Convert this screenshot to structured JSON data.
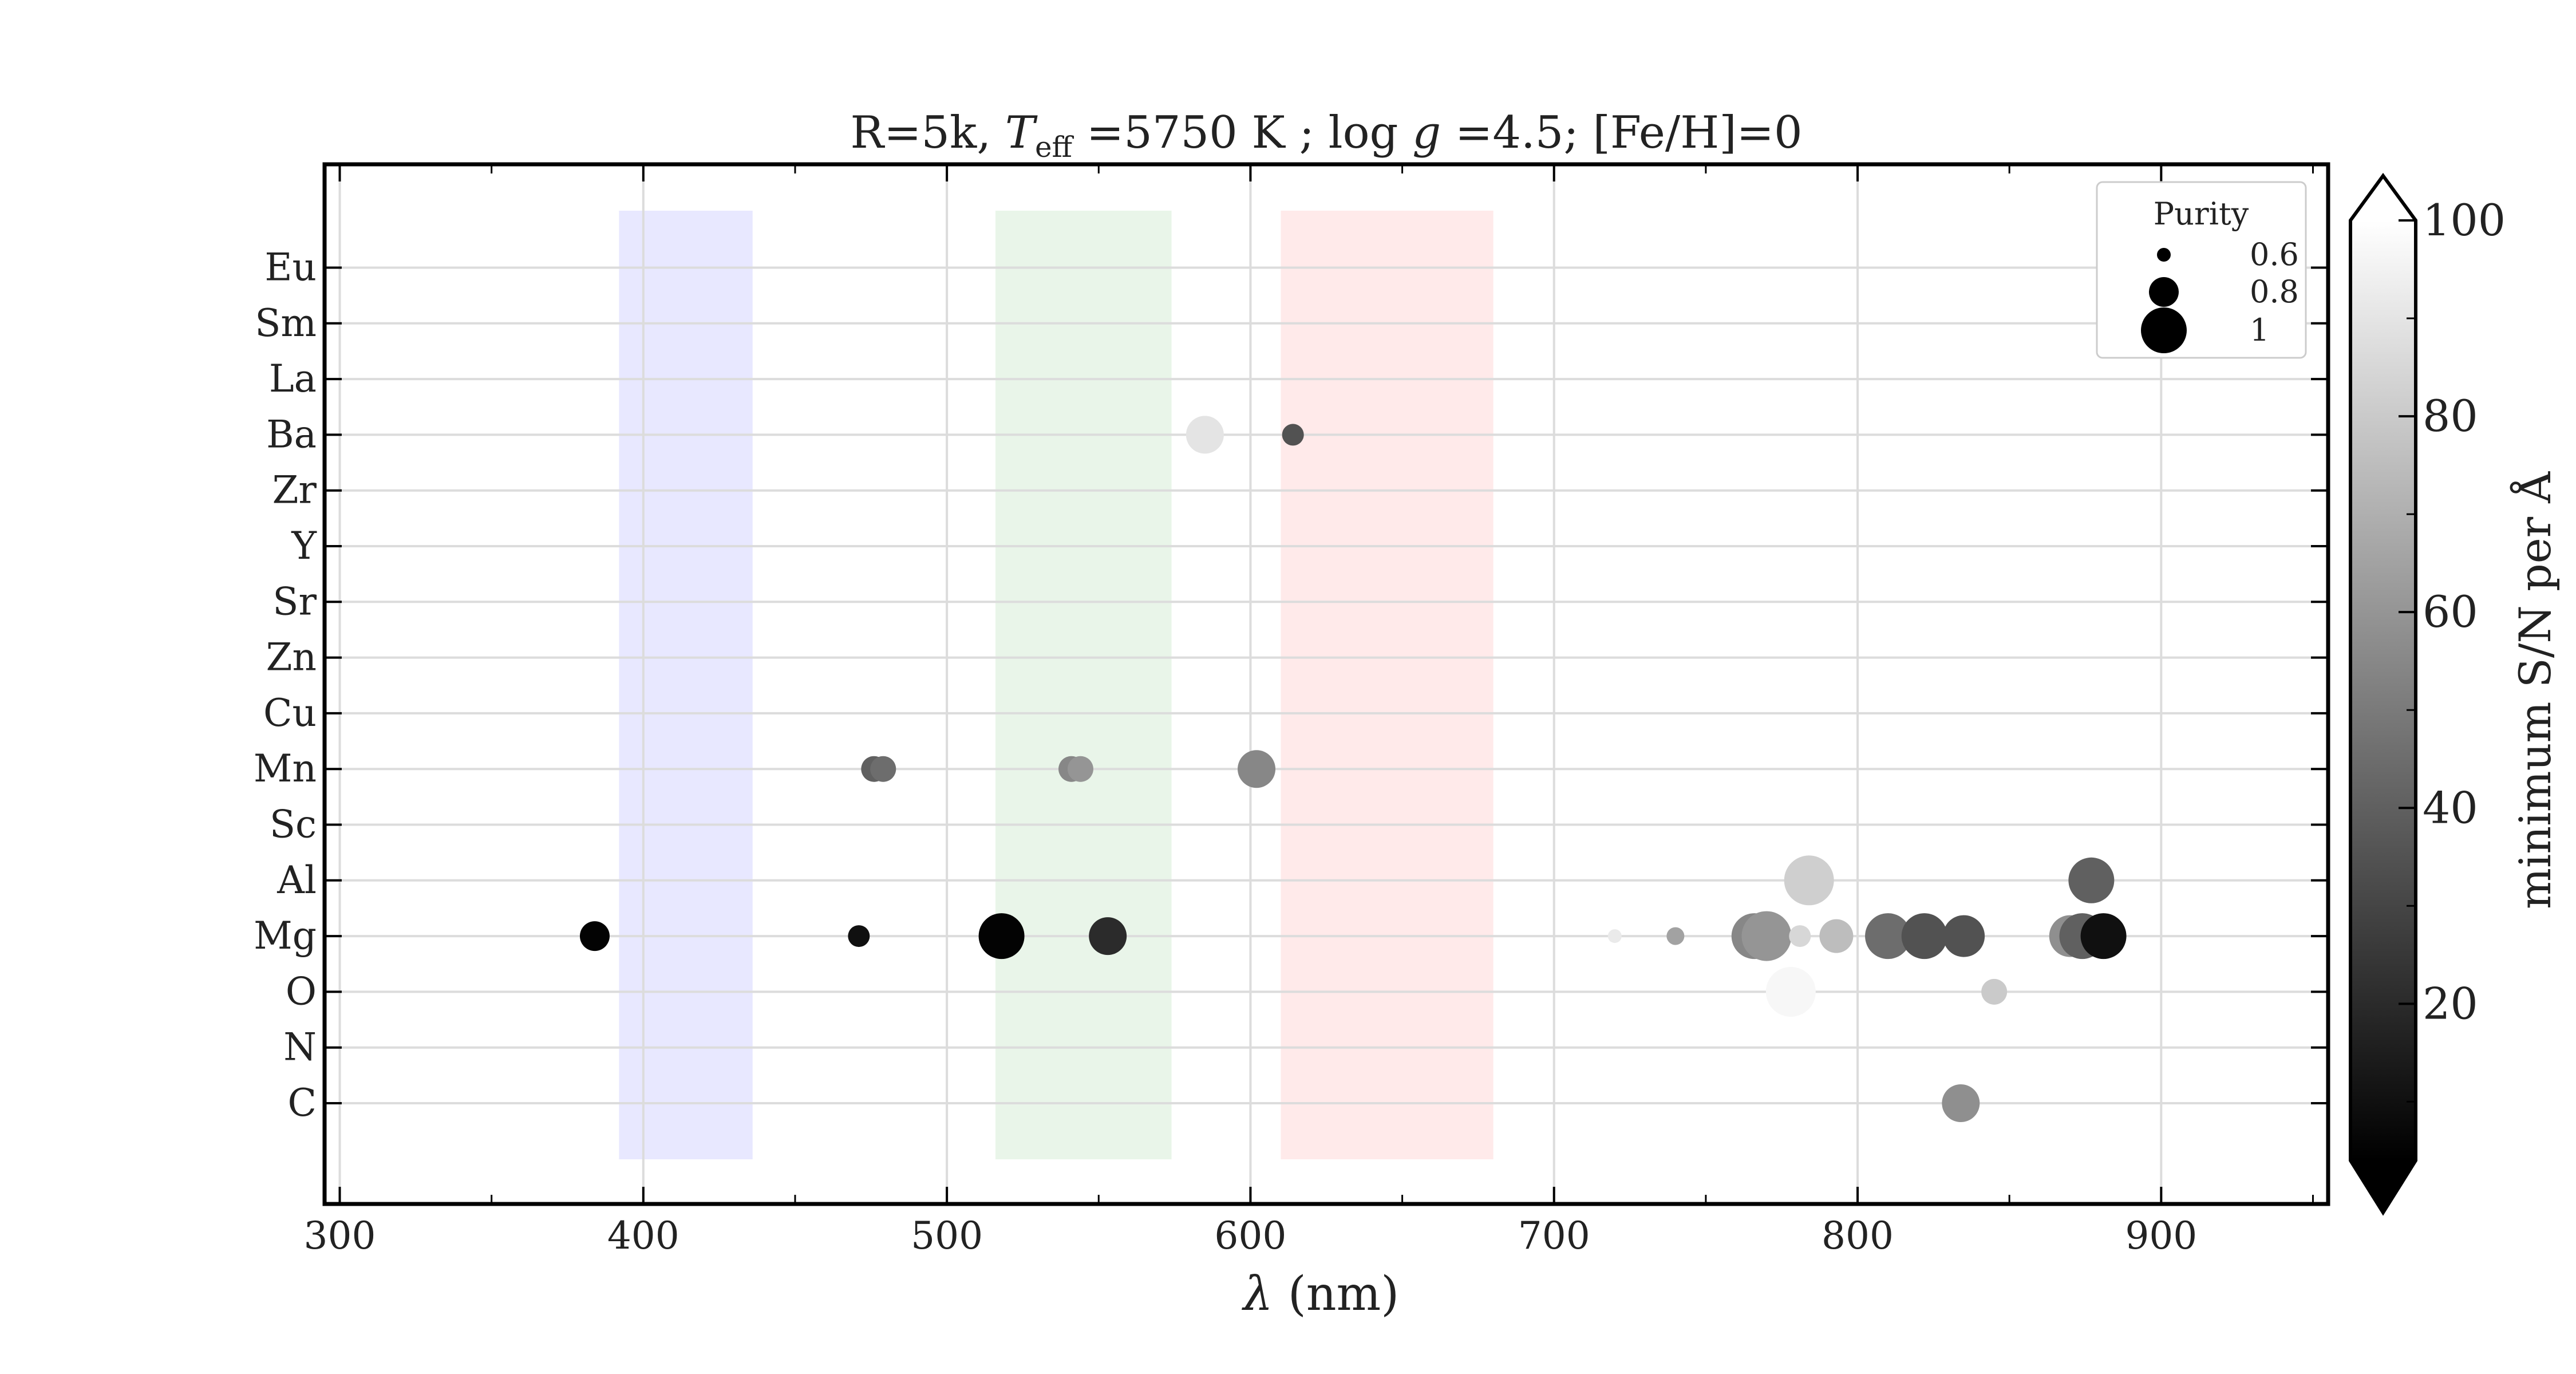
{
  "chart_data": {
    "type": "scatter",
    "title_parts": {
      "prefix": "R=5k, ",
      "teff_symbol": "T",
      "teff_sub": "eff",
      "teff_value": " =5750 K ; log ",
      "g_symbol": "g",
      "rest": " =4.5; [Fe/H]=0"
    },
    "title": "R=5k, T_eff =5750 K ; log g =4.5; [Fe/H]=0",
    "xlabel": "λ (nm)",
    "xlabel_parts": {
      "symbol": "λ",
      "unit": " (nm)"
    },
    "xlim": [
      295,
      955
    ],
    "x_ticks": [
      300,
      400,
      500,
      600,
      700,
      800,
      900
    ],
    "x_minor_step": 50,
    "y_categories": [
      "C",
      "N",
      "O",
      "Mg",
      "Al",
      "Sc",
      "Mn",
      "Cu",
      "Zn",
      "Sr",
      "Y",
      "Zr",
      "Ba",
      "La",
      "Sm",
      "Eu"
    ],
    "grid": true,
    "bands": [
      {
        "name": "blue",
        "x0": 392,
        "x1": 436,
        "color": "#e8e8ff"
      },
      {
        "name": "green",
        "x0": 516,
        "x1": 574,
        "color": "#e9f5e9"
      },
      {
        "name": "red",
        "x0": 610,
        "x1": 680,
        "color": "#ffeaea"
      }
    ],
    "points": [
      {
        "element": "Mg",
        "x": 384,
        "purity": 0.8,
        "snr": 5
      },
      {
        "element": "Mg",
        "x": 471,
        "purity": 0.7,
        "snr": 10
      },
      {
        "element": "Mg",
        "x": 518,
        "purity": 1.0,
        "snr": 5
      },
      {
        "element": "Mg",
        "x": 553,
        "purity": 0.9,
        "snr": 20
      },
      {
        "element": "Mg",
        "x": 720,
        "purity": 0.6,
        "snr": 92
      },
      {
        "element": "Mg",
        "x": 740,
        "purity": 0.65,
        "snr": 65
      },
      {
        "element": "Mg",
        "x": 766,
        "purity": 1.0,
        "snr": 55
      },
      {
        "element": "Mg",
        "x": 770,
        "purity": 1.05,
        "snr": 60
      },
      {
        "element": "Mg",
        "x": 781,
        "purity": 0.7,
        "snr": 85
      },
      {
        "element": "Mg",
        "x": 793,
        "purity": 0.85,
        "snr": 75
      },
      {
        "element": "Mg",
        "x": 810,
        "purity": 1.0,
        "snr": 45
      },
      {
        "element": "Mg",
        "x": 822,
        "purity": 1.0,
        "snr": 35
      },
      {
        "element": "Mg",
        "x": 835,
        "purity": 0.95,
        "snr": 35
      },
      {
        "element": "Mg",
        "x": 870,
        "purity": 0.95,
        "snr": 58
      },
      {
        "element": "Mg",
        "x": 874,
        "purity": 1.0,
        "snr": 40
      },
      {
        "element": "Mg",
        "x": 881,
        "purity": 1.0,
        "snr": 10
      },
      {
        "element": "Al",
        "x": 784,
        "purity": 1.05,
        "snr": 82
      },
      {
        "element": "Al",
        "x": 877,
        "purity": 1.0,
        "snr": 40
      },
      {
        "element": "Mn",
        "x": 476,
        "purity": 0.75,
        "snr": 40
      },
      {
        "element": "Mn",
        "x": 479,
        "purity": 0.75,
        "snr": 45
      },
      {
        "element": "Mn",
        "x": 541,
        "purity": 0.75,
        "snr": 55
      },
      {
        "element": "Mn",
        "x": 544,
        "purity": 0.75,
        "snr": 60
      },
      {
        "element": "Mn",
        "x": 602,
        "purity": 0.9,
        "snr": 55
      },
      {
        "element": "Ba",
        "x": 585,
        "purity": 0.9,
        "snr": 90
      },
      {
        "element": "Ba",
        "x": 614,
        "purity": 0.7,
        "snr": 35
      },
      {
        "element": "O",
        "x": 778,
        "purity": 1.05,
        "snr": 97
      },
      {
        "element": "O",
        "x": 845,
        "purity": 0.75,
        "snr": 80
      },
      {
        "element": "C",
        "x": 834,
        "purity": 0.9,
        "snr": 58
      }
    ],
    "legend": {
      "title": "Purity",
      "position": "top-right",
      "entries": [
        {
          "label": "0.6",
          "purity": 0.6
        },
        {
          "label": "0.8",
          "purity": 0.8
        },
        {
          "label": "1",
          "purity": 1.0
        }
      ]
    },
    "colorbar": {
      "label": "minimum S/N per Å",
      "range": [
        4,
        100
      ],
      "ticks": [
        20,
        40,
        60,
        80,
        100
      ],
      "minor_ticks": [
        10,
        30,
        50,
        70,
        90
      ],
      "cmap": "gray",
      "extend": "both"
    }
  }
}
